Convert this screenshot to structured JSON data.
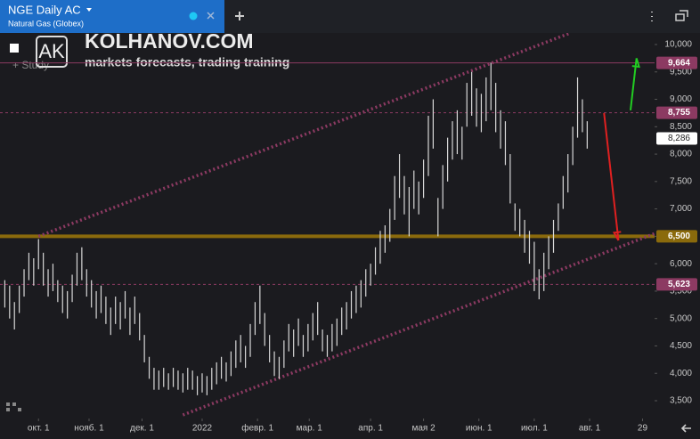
{
  "header": {
    "title": "NGE Daily AC",
    "subtitle": "Natural Gas (Globex)",
    "study": "+ Study"
  },
  "watermark": {
    "logo": "AK",
    "site": "KOLHANOV.COM",
    "tagline": "markets forecasts, trading training"
  },
  "chart_data": {
    "type": "hilo",
    "color": "#d8d8d8",
    "x": [
      2,
      4,
      6,
      8,
      10,
      12,
      14,
      16,
      18,
      20,
      22,
      24,
      26,
      28,
      30,
      32,
      34,
      36,
      38,
      40,
      42,
      44,
      46,
      48,
      50,
      52,
      54,
      56,
      58,
      60,
      62,
      64,
      66,
      68,
      70,
      72,
      74,
      76,
      78,
      80,
      82,
      84,
      86,
      88,
      90,
      92,
      94,
      96,
      98,
      100,
      102,
      104,
      106,
      108,
      110,
      112,
      114,
      116,
      118,
      120,
      122,
      124,
      126,
      128,
      130,
      132,
      134,
      136,
      138,
      140,
      142,
      144,
      146,
      148,
      150,
      152,
      154,
      156,
      158,
      160,
      162,
      164,
      166,
      168,
      170,
      172,
      174,
      176,
      178,
      180,
      182,
      184,
      186,
      188,
      190,
      192,
      194,
      196,
      198,
      200,
      202,
      204,
      206,
      208,
      210,
      212,
      214,
      216,
      218,
      220,
      222,
      224,
      226,
      228,
      230,
      232,
      234,
      236,
      238,
      240,
      242,
      244
    ],
    "series": [
      {
        "high": [
          5700,
          5600,
          5300,
          5600,
          5900,
          6200,
          6100,
          6450,
          6200,
          5900,
          6000,
          5700,
          5600,
          5500,
          5800,
          6200,
          6300,
          5900,
          5700,
          5500,
          5600,
          5400,
          5200,
          5400,
          5300,
          5500,
          5200,
          5400,
          5100,
          4700,
          4300,
          4100,
          4050,
          4100,
          4000,
          4100,
          4050,
          4000,
          4100,
          4050,
          3950,
          4000,
          3950,
          4100,
          4200,
          4300,
          4200,
          4400,
          4600,
          4700,
          4500,
          4900,
          5300,
          5600,
          5100,
          4700,
          4400,
          4300,
          4600,
          4900,
          4800,
          5000,
          4700,
          4900,
          5100,
          5300,
          4800,
          4700,
          4900,
          5000,
          5200,
          5300,
          5500,
          5600,
          5700,
          5900,
          6000,
          6300,
          6600,
          6700,
          7000,
          7600,
          8000,
          7600,
          7400,
          7700,
          7500,
          7900,
          8700,
          9000,
          7200,
          7800,
          8300,
          8600,
          8800,
          8500,
          9300,
          9500,
          9200,
          9100,
          9400,
          9664,
          9300,
          8800,
          8600,
          8000,
          7100,
          7000,
          6800,
          6600,
          6400,
          5900,
          6200,
          6500,
          6800,
          7100,
          7600,
          8000,
          8500,
          9400,
          9000,
          8600
        ],
        "low": [
          5200,
          5000,
          4800,
          5100,
          5400,
          5700,
          5600,
          5900,
          5600,
          5400,
          5500,
          5300,
          5100,
          5000,
          5300,
          5600,
          5700,
          5400,
          5200,
          5000,
          5100,
          4900,
          4700,
          4900,
          4800,
          5000,
          4700,
          4900,
          4600,
          4200,
          3900,
          3700,
          3700,
          3750,
          3700,
          3750,
          3700,
          3650,
          3700,
          3700,
          3600,
          3650,
          3600,
          3700,
          3800,
          3900,
          3850,
          3950,
          4100,
          4200,
          4100,
          4300,
          4700,
          4900,
          4500,
          4200,
          3950,
          3900,
          4100,
          4400,
          4300,
          4500,
          4300,
          4400,
          4600,
          4700,
          4400,
          4300,
          4400,
          4500,
          4700,
          4800,
          5000,
          5100,
          5200,
          5400,
          5600,
          5800,
          6000,
          6200,
          6400,
          6800,
          7200,
          6900,
          6500,
          7000,
          6900,
          7200,
          7600,
          8100,
          6500,
          7000,
          7500,
          7900,
          8000,
          7900,
          8500,
          8700,
          8500,
          8400,
          8600,
          8800,
          8400,
          8100,
          7800,
          7100,
          6600,
          6500,
          6200,
          6000,
          5500,
          5350,
          5500,
          5900,
          6200,
          6600,
          7000,
          7300,
          7800,
          8300,
          8400,
          8100
        ]
      }
    ],
    "xlim": [
      0,
      272
    ],
    "xticks": [
      {
        "value": 16,
        "label": "окт. 1"
      },
      {
        "value": 37,
        "label": "нояб. 1"
      },
      {
        "value": 59,
        "label": "дек. 1"
      },
      {
        "value": 84,
        "label": "2022"
      },
      {
        "value": 107,
        "label": "февр. 1"
      },
      {
        "value": 128.5,
        "label": "мар. 1"
      },
      {
        "value": 154,
        "label": "апр. 1"
      },
      {
        "value": 176,
        "label": "мая 2"
      },
      {
        "value": 199,
        "label": "июн. 1"
      },
      {
        "value": 222,
        "label": "июл. 1"
      },
      {
        "value": 245,
        "label": "авг. 1"
      },
      {
        "value": 267,
        "label": "29"
      }
    ],
    "ylim": [
      3175,
      10211
    ],
    "yticks": [
      {
        "value": 3500,
        "label": "3,500"
      },
      {
        "value": 4000,
        "label": "4,000"
      },
      {
        "value": 4500,
        "label": "4,500"
      },
      {
        "value": 5000,
        "label": "5,000"
      },
      {
        "value": 5500,
        "label": "5,500"
      },
      {
        "value": 6000,
        "label": "6,000"
      },
      {
        "value": 6500,
        "label": "6,500"
      },
      {
        "value": 7000,
        "label": "7,000"
      },
      {
        "value": 7500,
        "label": "7,500"
      },
      {
        "value": 8000,
        "label": "8,000"
      },
      {
        "value": 8500,
        "label": "8,500"
      },
      {
        "value": 9000,
        "label": "9,000"
      },
      {
        "value": 9500,
        "label": "9,500"
      },
      {
        "value": 10000,
        "label": "10,000"
      }
    ],
    "levels": [
      {
        "value": 9664,
        "label": "9,664",
        "color": "#8c3a62",
        "style": "solid"
      },
      {
        "value": 8755,
        "label": "8,755",
        "color": "#8c3a62",
        "style": "dashed"
      },
      {
        "value": 6500,
        "label": "6,500",
        "color": "#8a6a0c",
        "style": "thick"
      },
      {
        "value": 5623,
        "label": "5,623",
        "color": "#8c3a62",
        "style": "dashed"
      }
    ],
    "current_price": {
      "value": 8286,
      "label": "8,286"
    },
    "trend_lines": [
      {
        "points": [
          [
            16,
            6500
          ],
          [
            237,
            10211
          ]
        ],
        "color": "#8c3a62"
      },
      {
        "points": [
          [
            76,
            3240
          ],
          [
            272,
            6550
          ]
        ],
        "color": "#8c3a62"
      }
    ],
    "arrows": [
      {
        "from": [
          262,
          8800
        ],
        "to": [
          264.5,
          9750
        ],
        "color": "#22cc22"
      },
      {
        "from": [
          251,
          8749
        ],
        "to": [
          257,
          6425
        ],
        "color": "#e02020"
      }
    ]
  }
}
